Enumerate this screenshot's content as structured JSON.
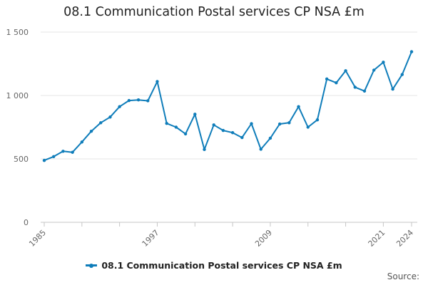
{
  "title": "08.1 Communication Postal services CP NSA £m",
  "source": "Source:",
  "colors": {
    "series": "#0f7dba",
    "grid": "#e6e6e6",
    "axis": "#c6c6c6",
    "tick_text": "#666666"
  },
  "chart_data": {
    "type": "line",
    "title": "08.1 Communication Postal services CP NSA £m",
    "xlabel": "",
    "ylabel": "",
    "x": [
      1985,
      1986,
      1987,
      1988,
      1989,
      1990,
      1991,
      1992,
      1993,
      1994,
      1995,
      1996,
      1997,
      1998,
      1999,
      2000,
      2001,
      2002,
      2003,
      2004,
      2005,
      2006,
      2007,
      2008,
      2009,
      2010,
      2011,
      2012,
      2013,
      2014,
      2015,
      2016,
      2017,
      2018,
      2019,
      2020,
      2021,
      2022,
      2023,
      2024
    ],
    "series": [
      {
        "name": "08.1 Communication Postal services CP NSA £m",
        "values": [
          488,
          518,
          560,
          552,
          633,
          718,
          785,
          830,
          912,
          960,
          965,
          958,
          1110,
          780,
          750,
          697,
          852,
          574,
          768,
          724,
          707,
          668,
          778,
          576,
          663,
          775,
          785,
          912,
          750,
          808,
          1130,
          1100,
          1195,
          1065,
          1035,
          1200,
          1262,
          1050,
          1165,
          1345
        ]
      }
    ],
    "xticks": [
      "1985",
      "1997",
      "2009",
      "2021",
      "2024"
    ],
    "yticks": [
      0,
      500,
      1000,
      1500
    ],
    "ytick_labels": [
      "0",
      "500",
      "1 000",
      "1 500"
    ],
    "ylim": [
      0,
      1500
    ],
    "xlim": [
      1985,
      2024
    ],
    "grid": "horizontal",
    "legend": "bottom-center"
  }
}
